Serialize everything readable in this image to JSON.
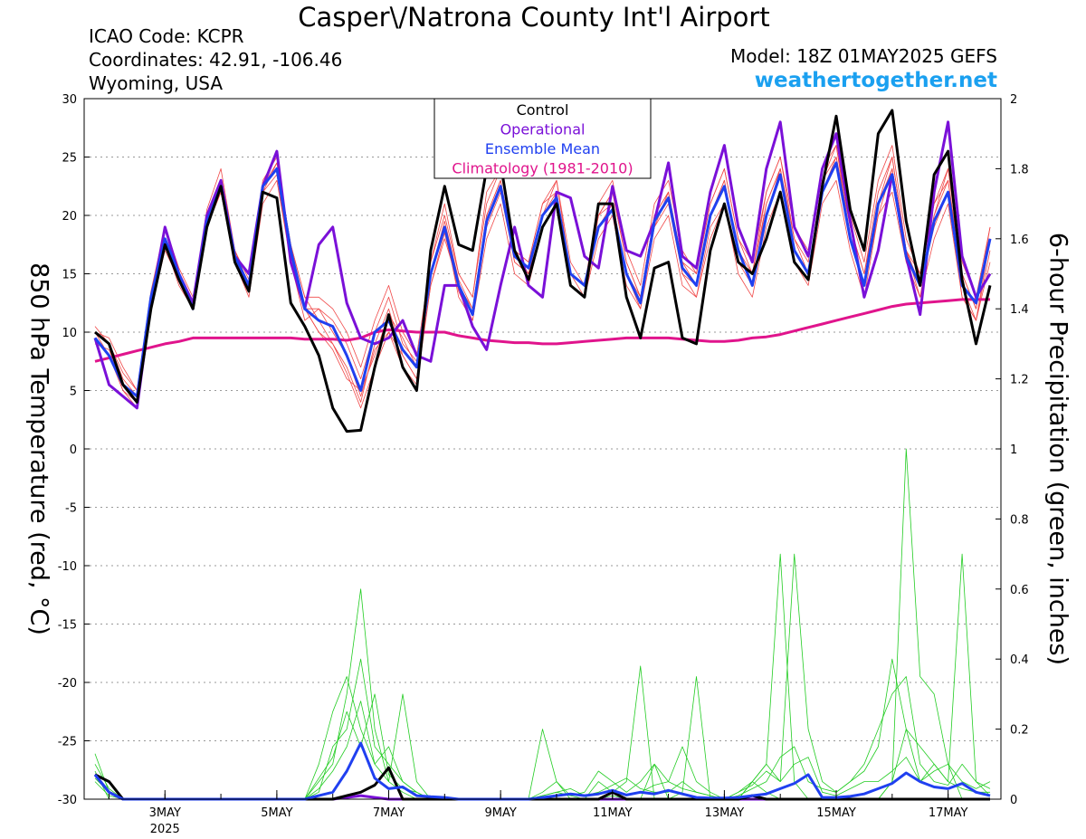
{
  "header": {
    "title": "Casper\\/Natrona County Int'l Airport",
    "icao": "ICAO Code: KCPR",
    "coords": "Coordinates: 42.91, -106.46",
    "region": "Wyoming, USA",
    "model": "Model: 18Z 01MAY2025 GEFS",
    "site": "weathertogether.net"
  },
  "chart_data": {
    "type": "line",
    "x_start_label": "01MAY2025 18Z",
    "x_step_hours": 6,
    "x_tick_labels": [
      "3MAY",
      "5MAY",
      "7MAY",
      "9MAY",
      "11MAY",
      "13MAY",
      "15MAY",
      "17MAY"
    ],
    "x_year_label": "2025",
    "y_left": {
      "label": "850 hPa Temperature (red, °C)",
      "range": [
        -30,
        30
      ],
      "ticks": [
        30,
        25,
        20,
        15,
        10,
        5,
        0,
        -5,
        -10,
        -15,
        -20,
        -25,
        -30
      ]
    },
    "y_right": {
      "label": "6-hour Precipitation (green, inches)",
      "range": [
        0,
        2
      ],
      "ticks": [
        2,
        1.8,
        1.6,
        1.4,
        1.2,
        1,
        0.8,
        0.6,
        0.4,
        0.2,
        0
      ]
    },
    "grid": "dotted horizontal",
    "legend_placement": "top-center",
    "legend": [
      {
        "name": "Control",
        "color": "#000000"
      },
      {
        "name": "Operational",
        "color": "#7a10d8"
      },
      {
        "name": "Ensemble Mean",
        "color": "#2040f0"
      },
      {
        "name": "Climatology (1981-2010)",
        "color": "#e0148c"
      }
    ],
    "series": [
      {
        "name": "Control",
        "axis": "left",
        "values": [
          10,
          9,
          5.5,
          4,
          12,
          17.5,
          14.5,
          12,
          19,
          22.5,
          16,
          13.5,
          22,
          21.5,
          12.5,
          10.5,
          8,
          3.5,
          1.5,
          1.6,
          7,
          11.5,
          7,
          5,
          17,
          22.5,
          17.5,
          17,
          24,
          24.5,
          17,
          14.5,
          19,
          21,
          14,
          13,
          21,
          21,
          13,
          9.5,
          15.5,
          16,
          9.5,
          9,
          17,
          21,
          16,
          15,
          18,
          22,
          16,
          14.5,
          22.5,
          28.5,
          20.5,
          17,
          27,
          29,
          19.5,
          14,
          23.5,
          25.5,
          14.5,
          9,
          14
        ]
      },
      {
        "name": "Operational",
        "axis": "left",
        "values": [
          9.5,
          5.5,
          4.5,
          3.5,
          12.5,
          19,
          15,
          12.5,
          20,
          23,
          16.5,
          15,
          22.5,
          25.5,
          16,
          12,
          17.5,
          19,
          12.5,
          9.5,
          9,
          9.5,
          11,
          8,
          7.5,
          14,
          14,
          10.5,
          8.5,
          14,
          19,
          14,
          13,
          22,
          21.5,
          16.5,
          15.5,
          22.5,
          17,
          16.5,
          19.5,
          24.5,
          16.5,
          15.5,
          22,
          26,
          19,
          16,
          24,
          28,
          19,
          16.5,
          24,
          27,
          19.5,
          13,
          17,
          23.5,
          16.5,
          11.5,
          22,
          28,
          16.5,
          13,
          15
        ]
      },
      {
        "name": "Ensemble Mean",
        "axis": "left",
        "values": [
          9.5,
          8,
          5.5,
          4.5,
          13,
          18,
          15,
          12,
          19.5,
          22.5,
          16.5,
          14,
          22.5,
          24,
          17,
          12,
          11,
          10.5,
          8,
          5,
          10,
          11,
          8.5,
          7,
          15,
          19,
          14,
          11.5,
          19.5,
          22.5,
          16.5,
          15.5,
          20,
          21.5,
          15,
          14,
          19,
          20.5,
          15,
          12.5,
          19.5,
          21.5,
          15.5,
          14,
          20,
          22.5,
          17,
          14,
          20,
          23.5,
          17,
          15,
          22,
          24.5,
          18,
          14,
          21,
          23.5,
          16.5,
          14,
          19.5,
          22,
          14,
          12.5,
          18
        ]
      },
      {
        "name": "Climatology (1981-2010)",
        "axis": "left",
        "values": [
          7.5,
          7.8,
          8.1,
          8.4,
          8.7,
          9,
          9.2,
          9.5,
          9.5,
          9.5,
          9.5,
          9.5,
          9.5,
          9.5,
          9.5,
          9.4,
          9.4,
          9.4,
          9.3,
          9.5,
          10,
          10.2,
          10.1,
          10,
          10,
          10,
          9.7,
          9.5,
          9.3,
          9.2,
          9.1,
          9.1,
          9,
          9,
          9.1,
          9.2,
          9.3,
          9.4,
          9.5,
          9.5,
          9.5,
          9.5,
          9.4,
          9.3,
          9.2,
          9.2,
          9.3,
          9.5,
          9.6,
          9.8,
          10.1,
          10.4,
          10.7,
          11,
          11.3,
          11.6,
          11.9,
          12.2,
          12.4,
          12.5,
          12.6,
          12.7,
          12.8,
          12.8,
          12.8
        ]
      },
      {
        "name": "Control",
        "axis": "right",
        "values": [
          0.07,
          0.05,
          0,
          0,
          0,
          0,
          0,
          0,
          0,
          0,
          0,
          0,
          0,
          0,
          0,
          0,
          0,
          0,
          0.01,
          0.02,
          0.04,
          0.09,
          0,
          0,
          0,
          0,
          0,
          0,
          0,
          0,
          0,
          0,
          0,
          0,
          0,
          0,
          0,
          0.02,
          0,
          0,
          0,
          0,
          0,
          0,
          0,
          0,
          0,
          0.01,
          0,
          0,
          0,
          0,
          0,
          0,
          0,
          0,
          0,
          0,
          0,
          0,
          0,
          0,
          0,
          0,
          0
        ]
      },
      {
        "name": "Ensemble Mean",
        "axis": "right",
        "values": [
          0.07,
          0.02,
          0,
          0,
          0,
          0,
          0,
          0,
          0,
          0,
          0,
          0,
          0,
          0,
          0,
          0,
          0.01,
          0.02,
          0.08,
          0.16,
          0.06,
          0.03,
          0.035,
          0.01,
          0.007,
          0.005,
          0,
          0,
          0,
          0,
          0,
          0,
          0.005,
          0.01,
          0.015,
          0.01,
          0.015,
          0.025,
          0.012,
          0.02,
          0.015,
          0.025,
          0.015,
          0.005,
          0.003,
          0.003,
          0.005,
          0.01,
          0.015,
          0.03,
          0.045,
          0.07,
          0.005,
          0.005,
          0.008,
          0.015,
          0.03,
          0.045,
          0.075,
          0.05,
          0.035,
          0.03,
          0.045,
          0.02,
          0.01
        ]
      },
      {
        "name": "Operational",
        "axis": "right",
        "values": [
          0.07,
          0.02,
          0,
          0,
          0,
          0,
          0,
          0,
          0,
          0,
          0,
          0,
          0,
          0,
          0,
          0,
          0,
          0,
          0.005,
          0.01,
          0.005,
          0,
          0,
          0,
          0,
          0,
          0,
          0,
          0,
          0,
          0,
          0,
          0,
          0,
          0,
          0,
          0,
          0,
          0,
          0,
          0,
          0,
          0,
          0,
          0,
          0,
          0,
          0,
          0,
          0,
          0,
          0,
          0,
          0,
          0,
          0,
          0,
          0,
          0,
          0,
          0,
          0,
          0,
          0,
          0
        ]
      }
    ],
    "members_temperature": [
      [
        10,
        9,
        6,
        4.5,
        12.5,
        18,
        15,
        12.5,
        20.5,
        24,
        17,
        14,
        23,
        25,
        17,
        12,
        10,
        8.5,
        6,
        5,
        8,
        11.5,
        9.5,
        7,
        16,
        20,
        15,
        13,
        22,
        24,
        17,
        15,
        20,
        23,
        15,
        14,
        20,
        22,
        16,
        13,
        20,
        22,
        16,
        15,
        21,
        24,
        18,
        15,
        22,
        25,
        18,
        16,
        24,
        26,
        18,
        14,
        20,
        24,
        17,
        15,
        21,
        23,
        14,
        11,
        16
      ],
      [
        9.5,
        8,
        5,
        4,
        12,
        17,
        14.5,
        12,
        19,
        22,
        16,
        14,
        22,
        23.5,
        16,
        11,
        12,
        11,
        9,
        6,
        10,
        13,
        9,
        7.5,
        15,
        19,
        13,
        11,
        19,
        22,
        16,
        15,
        19,
        21,
        14,
        13,
        18,
        20,
        14,
        12,
        18,
        20,
        14,
        13,
        19,
        21,
        15,
        13,
        19,
        22,
        16,
        14,
        21,
        23,
        17,
        13,
        20,
        22,
        16,
        13,
        18,
        21,
        13,
        11,
        17
      ],
      [
        10.5,
        9,
        6.5,
        5,
        13.5,
        19,
        15.5,
        13,
        20,
        23,
        17,
        14.5,
        22.5,
        24.5,
        17.5,
        13,
        11,
        9,
        7,
        4,
        9,
        12,
        8,
        6,
        14,
        18,
        14,
        12,
        20,
        23,
        17,
        16,
        21,
        22,
        15,
        14,
        20,
        21,
        15,
        12,
        19,
        22,
        16,
        14,
        20,
        23,
        17,
        14,
        21,
        24,
        18,
        15,
        23,
        26,
        19,
        15,
        22,
        25,
        17,
        13,
        20,
        23,
        15,
        12,
        19
      ],
      [
        9,
        8.5,
        5.5,
        4,
        12.5,
        17.5,
        14,
        12,
        19,
        22,
        16,
        13,
        21,
        23,
        16,
        12,
        12,
        10,
        8,
        4.5,
        8.5,
        10,
        8,
        6,
        15,
        19.5,
        14.5,
        12,
        20,
        23,
        16,
        15,
        20,
        22,
        15,
        13,
        20,
        22,
        16,
        13,
        20,
        22,
        15,
        13,
        18,
        21,
        16,
        14,
        20,
        24,
        17,
        15,
        23,
        25,
        18,
        14,
        21,
        24,
        17,
        14,
        19,
        22,
        13,
        11,
        18
      ],
      [
        10,
        8,
        5,
        3.5,
        12,
        18,
        14.5,
        12.5,
        19.5,
        23,
        17,
        14,
        22.5,
        24,
        17,
        12,
        10,
        9,
        6.5,
        3.5,
        7,
        10,
        7,
        5.5,
        14,
        18.5,
        13.5,
        11,
        18,
        21,
        15,
        14,
        19,
        21,
        14,
        13,
        19,
        21,
        15,
        13,
        19,
        21,
        15,
        14,
        20,
        23,
        17,
        15,
        21,
        24,
        17,
        15,
        22,
        25,
        19,
        15,
        21,
        25,
        17,
        14,
        20,
        24,
        15,
        12,
        18
      ],
      [
        10,
        9.5,
        7,
        5,
        13,
        18,
        15,
        12,
        19.5,
        22.5,
        16.5,
        14,
        22,
        24.5,
        17.5,
        13,
        13,
        12,
        10,
        7,
        11,
        14,
        10,
        8,
        16,
        21,
        15,
        13,
        21,
        24,
        17,
        16,
        21,
        23,
        16,
        14,
        21,
        23,
        17,
        14,
        21,
        23,
        17,
        15,
        21,
        24,
        18,
        16,
        22,
        25,
        19,
        17,
        24,
        27,
        20,
        16,
        23,
        26,
        18,
        15,
        21,
        24,
        16,
        13,
        19
      ]
    ],
    "members_precip": [
      [
        0.13,
        0.02,
        0,
        0,
        0,
        0,
        0,
        0,
        0,
        0,
        0,
        0,
        0,
        0,
        0,
        0,
        0.05,
        0.1,
        0.3,
        0.6,
        0.2,
        0.05,
        0.02,
        0,
        0,
        0,
        0,
        0,
        0,
        0,
        0,
        0,
        0,
        0,
        0,
        0,
        0,
        0.01,
        0,
        0,
        0.1,
        0,
        0,
        0,
        0,
        0,
        0,
        0.05,
        0.02,
        0,
        0,
        0,
        0,
        0,
        0,
        0,
        0,
        0.05,
        1.0,
        0.35,
        0.3,
        0.1,
        0,
        0,
        0
      ],
      [
        0.08,
        0,
        0,
        0,
        0,
        0,
        0,
        0,
        0,
        0,
        0,
        0,
        0,
        0,
        0,
        0,
        0.1,
        0.25,
        0.35,
        0.2,
        0.1,
        0.05,
        0.3,
        0.05,
        0,
        0,
        0,
        0,
        0,
        0,
        0,
        0,
        0.2,
        0.05,
        0,
        0,
        0,
        0.02,
        0.05,
        0.38,
        0,
        0,
        0.02,
        0.35,
        0,
        0,
        0,
        0.05,
        0.1,
        0.7,
        0.05,
        0,
        0,
        0,
        0,
        0,
        0,
        0.05,
        0.2,
        0.05,
        0.1,
        0.05,
        0.7,
        0.05,
        0.01
      ],
      [
        0.05,
        0.01,
        0,
        0,
        0,
        0,
        0,
        0,
        0,
        0,
        0,
        0,
        0,
        0,
        0,
        0,
        0.02,
        0.15,
        0.2,
        0.4,
        0.15,
        0.1,
        0.05,
        0.02,
        0,
        0,
        0,
        0,
        0,
        0,
        0,
        0,
        0.02,
        0.05,
        0.01,
        0.02,
        0.08,
        0.05,
        0.02,
        0.05,
        0.1,
        0.05,
        0.15,
        0.05,
        0.02,
        0,
        0.02,
        0.05,
        0.1,
        0.05,
        0.7,
        0.2,
        0.05,
        0.02,
        0.05,
        0.1,
        0.2,
        0.3,
        0.35,
        0.1,
        0.05,
        0.04,
        0.1,
        0.05,
        0.03
      ],
      [
        0.1,
        0.03,
        0,
        0,
        0,
        0,
        0,
        0,
        0,
        0,
        0,
        0,
        0,
        0,
        0,
        0,
        0.03,
        0.08,
        0.15,
        0.28,
        0.1,
        0.15,
        0.05,
        0.02,
        0,
        0,
        0,
        0,
        0,
        0,
        0,
        0,
        0.01,
        0.02,
        0.01,
        0,
        0.05,
        0.02,
        0.01,
        0.02,
        0.04,
        0.05,
        0.03,
        0.02,
        0.01,
        0,
        0.01,
        0.03,
        0.05,
        0.12,
        0.15,
        0.05,
        0.03,
        0.02,
        0.05,
        0.08,
        0.15,
        0.4,
        0.2,
        0.15,
        0.1,
        0.05,
        0.03,
        0.02,
        0.02
      ],
      [
        0.06,
        0.02,
        0,
        0,
        0,
        0,
        0,
        0,
        0,
        0,
        0,
        0,
        0,
        0,
        0,
        0,
        0.06,
        0.12,
        0.25,
        0.15,
        0.3,
        0.07,
        0.03,
        0.02,
        0,
        0,
        0,
        0,
        0,
        0,
        0,
        0,
        0.01,
        0.02,
        0.03,
        0.01,
        0.02,
        0.04,
        0.06,
        0.03,
        0.02,
        0.02,
        0.05,
        0.02,
        0.01,
        0,
        0.02,
        0.04,
        0.08,
        0.05,
        0.1,
        0.12,
        0.02,
        0.01,
        0.03,
        0.05,
        0.05,
        0.08,
        0.12,
        0.05,
        0.08,
        0.1,
        0.05,
        0.03,
        0.05
      ]
    ]
  }
}
